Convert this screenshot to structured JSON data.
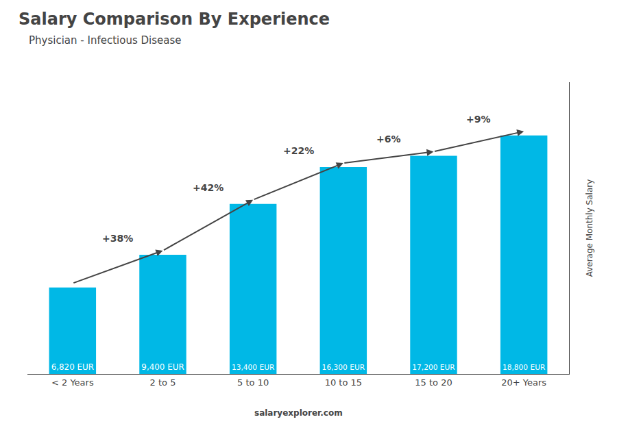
{
  "chart_data": {
    "type": "bar",
    "title": "Salary Comparison By Experience",
    "subtitle": "Physician - Infectious Disease",
    "ylabel": "Average Monthly Salary",
    "source": "salaryexplorer.com",
    "categories": [
      "< 2 Years",
      "2 to 5",
      "5 to 10",
      "10 to 15",
      "15 to 20",
      "20+ Years"
    ],
    "values": [
      6820,
      9400,
      13400,
      16300,
      17200,
      18800
    ],
    "value_labels": [
      "6,820 EUR",
      "9,400 EUR",
      "13,400 EUR",
      "16,300 EUR",
      "17,200 EUR",
      "18,800 EUR"
    ],
    "data_labels": true,
    "annotations": [
      "+38%",
      "+42%",
      "+22%",
      "+6%",
      "+9%"
    ],
    "color": "#00b8e6",
    "ylim": [
      0,
      23000
    ],
    "yticks": [],
    "grid": false,
    "tick_labels": "x"
  }
}
